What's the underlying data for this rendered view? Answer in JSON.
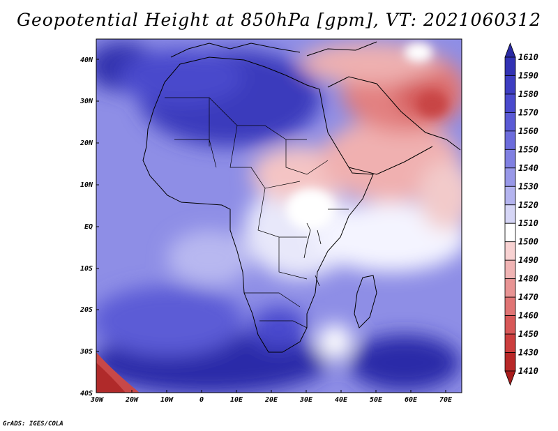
{
  "title": "Geopotential Height at 850hPa [gpm], VT: 2021060312",
  "credit": "GrADS: IGES/COLA",
  "map": {
    "variable": "Geopotential Height",
    "level": "850hPa",
    "units": "gpm",
    "valid_time": "2021060312",
    "region": "Africa",
    "lon_range": [
      -30,
      75
    ],
    "lat_range": [
      -40,
      45
    ],
    "lat_labels": [
      "40N",
      "30N",
      "20N",
      "10N",
      "EQ",
      "10S",
      "20S",
      "30S",
      "40S"
    ],
    "lon_labels": [
      "30W",
      "20W",
      "10W",
      "0",
      "10E",
      "20E",
      "30E",
      "40E",
      "50E",
      "60E",
      "70E"
    ]
  },
  "colorbar": {
    "levels": [
      "1610",
      "1590",
      "1580",
      "1570",
      "1560",
      "1550",
      "1540",
      "1530",
      "1520",
      "1510",
      "1500",
      "1490",
      "1480",
      "1470",
      "1460",
      "1450",
      "1430",
      "1410"
    ],
    "colors": [
      "#2a2aa3",
      "#3232b4",
      "#3d3dc2",
      "#4a4acd",
      "#5a5ad5",
      "#6c6cdc",
      "#8080e2",
      "#9898e8",
      "#b4b4ef",
      "#d6d6f6",
      "#ffffff",
      "#f8d2d2",
      "#f0b4b4",
      "#e89494",
      "#e07474",
      "#d85858",
      "#cc3e3e",
      "#b82828",
      "#a81c1c"
    ]
  }
}
